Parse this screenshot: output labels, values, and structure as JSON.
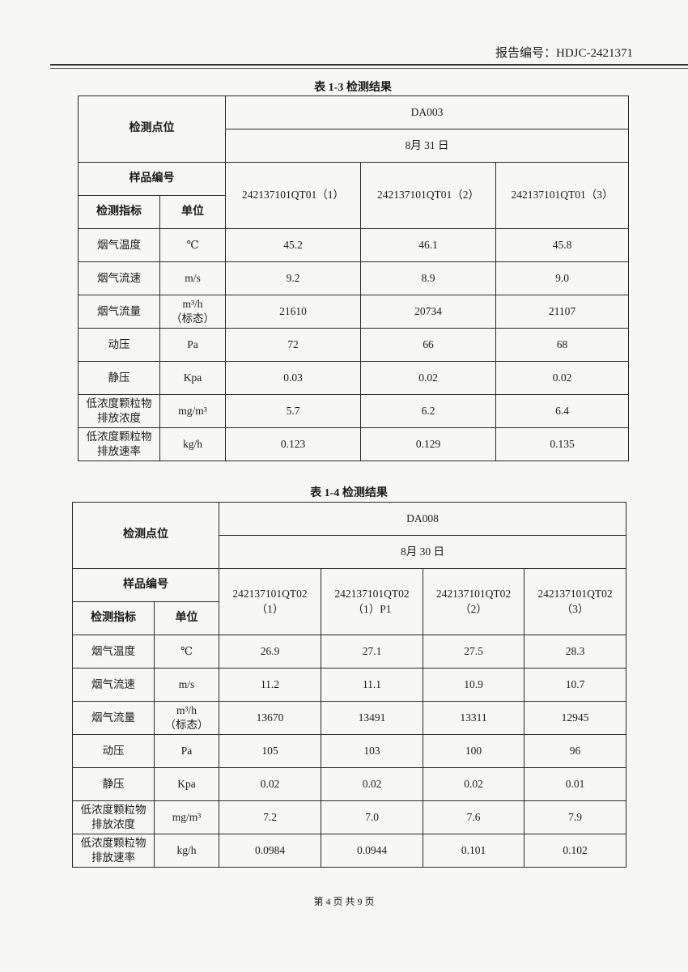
{
  "header": {
    "report_no": "报告编号：HDJC-2421371"
  },
  "footer": {
    "page": "第 4 页 共 9 页"
  },
  "labels": {
    "point": "检测点位",
    "sample": "样品编号",
    "indicator": "检测指标",
    "unit": "单位"
  },
  "tables": [
    {
      "caption": "表 1-3   检测结果",
      "point": "DA003",
      "date": "8月 31 日",
      "samples": [
        "242137101QT01（1）",
        "242137101QT01（2）",
        "242137101QT01（3）"
      ],
      "rows": [
        {
          "name": "烟气温度",
          "unit": "℃",
          "values": [
            "45.2",
            "46.1",
            "45.8"
          ]
        },
        {
          "name": "烟气流速",
          "unit": "m/s",
          "values": [
            "9.2",
            "8.9",
            "9.0"
          ]
        },
        {
          "name": "烟气流量",
          "unit": "m³/h\n（标态）",
          "values": [
            "21610",
            "20734",
            "21107"
          ]
        },
        {
          "name": "动压",
          "unit": "Pa",
          "values": [
            "72",
            "66",
            "68"
          ]
        },
        {
          "name": "静压",
          "unit": "Kpa",
          "values": [
            "0.03",
            "0.02",
            "0.02"
          ]
        },
        {
          "name": "低浓度颗粒物\n排放浓度",
          "unit": "mg/m³",
          "values": [
            "5.7",
            "6.2",
            "6.4"
          ]
        },
        {
          "name": "低浓度颗粒物\n排放速率",
          "unit": "kg/h",
          "values": [
            "0.123",
            "0.129",
            "0.135"
          ]
        }
      ]
    },
    {
      "caption": "表 1-4   检测结果",
      "point": "DA008",
      "date": "8月 30 日",
      "samples": [
        "242137101QT02\n（1）",
        "242137101QT02\n（1）P1",
        "242137101QT02\n（2）",
        "242137101QT02\n（3）"
      ],
      "rows": [
        {
          "name": "烟气温度",
          "unit": "℃",
          "values": [
            "26.9",
            "27.1",
            "27.5",
            "28.3"
          ]
        },
        {
          "name": "烟气流速",
          "unit": "m/s",
          "values": [
            "11.2",
            "11.1",
            "10.9",
            "10.7"
          ]
        },
        {
          "name": "烟气流量",
          "unit": "m³/h\n（标态）",
          "values": [
            "13670",
            "13491",
            "13311",
            "12945"
          ]
        },
        {
          "name": "动压",
          "unit": "Pa",
          "values": [
            "105",
            "103",
            "100",
            "96"
          ]
        },
        {
          "name": "静压",
          "unit": "Kpa",
          "values": [
            "0.02",
            "0.02",
            "0.02",
            "0.01"
          ]
        },
        {
          "name": "低浓度颗粒物\n排放浓度",
          "unit": "mg/m³",
          "values": [
            "7.2",
            "7.0",
            "7.6",
            "7.9"
          ]
        },
        {
          "name": "低浓度颗粒物\n排放速率",
          "unit": "kg/h",
          "values": [
            "0.0984",
            "0.0944",
            "0.101",
            "0.102"
          ]
        }
      ]
    }
  ]
}
